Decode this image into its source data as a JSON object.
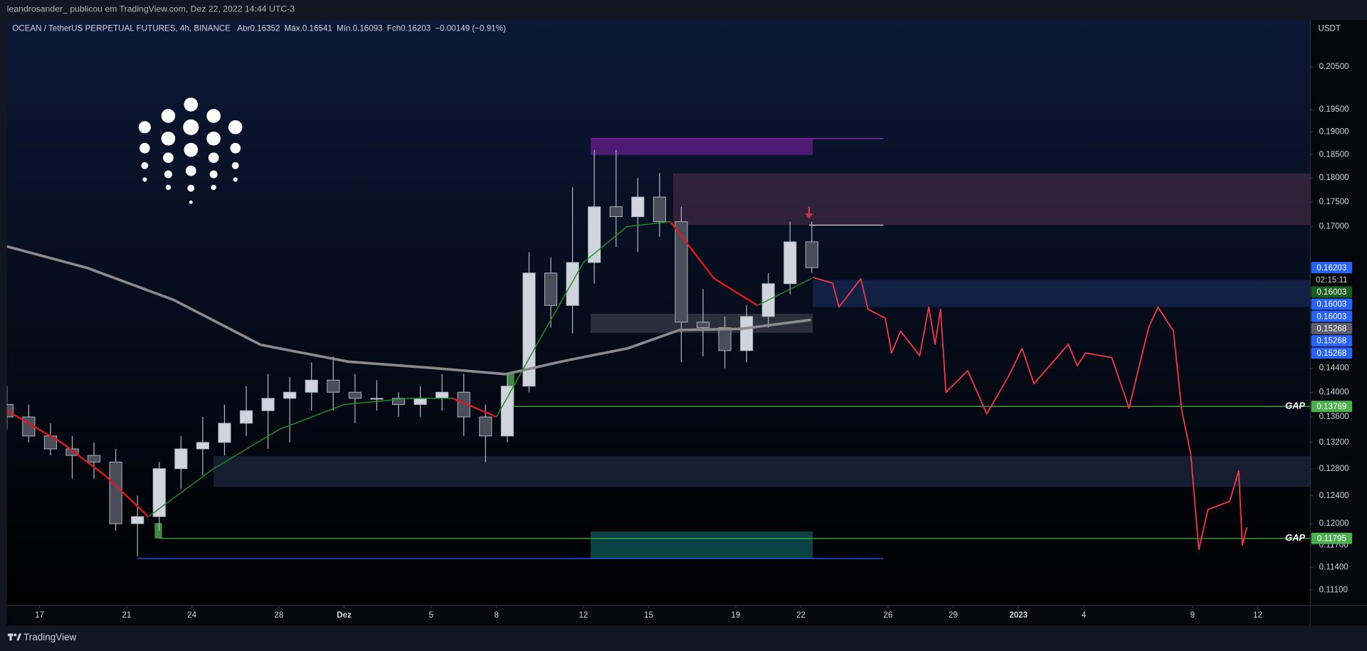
{
  "header": {
    "publisher": "leandrosander_ publicou em TradingView.com, Dez 22, 2022 14:44 UTC-3"
  },
  "footer": {
    "brand": "TradingView"
  },
  "chart_data": {
    "type": "candlestick",
    "title": "OCEAN / TetherUS PERPETUAL FUTURES, 4h, BINANCE",
    "ohlc_legend": [
      {
        "label": "Abr",
        "value": 0.16352
      },
      {
        "label": "Máx.",
        "value": 0.16541
      },
      {
        "label": "Mín.",
        "value": 0.16093
      },
      {
        "label": "Fch",
        "value": 0.16203
      }
    ],
    "change": "−0.00149 (−0.91%)",
    "y_unit": "USDT",
    "log_scale": true,
    "xlim": [
      "2022-11-15T12:00",
      "2023-01-14T10:00"
    ],
    "ylim": [
      0.2166,
      0.109
    ],
    "xticks": [
      {
        "value": "2022-11-17",
        "label": "17"
      },
      {
        "value": "2022-11-21",
        "label": "21"
      },
      {
        "value": "2022-11-24",
        "label": "24"
      },
      {
        "value": "2022-11-28",
        "label": "28"
      },
      {
        "value": "2022-12-01",
        "label": "Dez"
      },
      {
        "value": "2022-12-05",
        "label": "5"
      },
      {
        "value": "2022-12-08",
        "label": "8"
      },
      {
        "value": "2022-12-12",
        "label": "12"
      },
      {
        "value": "2022-12-15",
        "label": "15"
      },
      {
        "value": "2022-12-19",
        "label": "19"
      },
      {
        "value": "2022-12-22",
        "label": "22"
      },
      {
        "value": "2022-12-26",
        "label": "26"
      },
      {
        "value": "2022-12-29",
        "label": "29"
      },
      {
        "value": "2023-01-01",
        "label": "2023"
      },
      {
        "value": "2023-01-04",
        "label": "4"
      },
      {
        "value": "2023-01-09",
        "label": "9"
      },
      {
        "value": "2023-01-12",
        "label": "12"
      }
    ],
    "yticks": [
      {
        "value": 0.205,
        "label": "0.20500"
      },
      {
        "value": 0.195,
        "label": "0.19500"
      },
      {
        "value": 0.19,
        "label": "0.19000"
      },
      {
        "value": 0.185,
        "label": "0.18500"
      },
      {
        "value": 0.18,
        "label": "0.18000"
      },
      {
        "value": 0.175,
        "label": "0.17500"
      },
      {
        "value": 0.17,
        "label": "0.17000"
      },
      {
        "value": 0.144,
        "label": "0.14400"
      },
      {
        "value": 0.14,
        "label": "0.14000"
      },
      {
        "value": 0.136,
        "label": "0.13600"
      },
      {
        "value": 0.132,
        "label": "0.13200"
      },
      {
        "value": 0.128,
        "label": "0.12800"
      },
      {
        "value": 0.124,
        "label": "0.12400"
      },
      {
        "value": 0.12,
        "label": "0.12000"
      },
      {
        "value": 0.117,
        "label": "0.11700"
      },
      {
        "value": 0.114,
        "label": "0.11400"
      },
      {
        "value": 0.111,
        "label": "0.11100"
      }
    ],
    "up_color": "#d1d4dc",
    "down_color": "#4a4e5a",
    "x": [
      "2022-11-15",
      "2022-11-16",
      "2022-11-17",
      "2022-11-18",
      "2022-11-19",
      "2022-11-20",
      "2022-11-21",
      "2022-11-22",
      "2022-11-23",
      "2022-11-24",
      "2022-11-25",
      "2022-11-26",
      "2022-11-27",
      "2022-11-28",
      "2022-11-29",
      "2022-11-30",
      "2022-12-01",
      "2022-12-02",
      "2022-12-03",
      "2022-12-04",
      "2022-12-05",
      "2022-12-06",
      "2022-12-07",
      "2022-12-08",
      "2022-12-09",
      "2022-12-10",
      "2022-12-11",
      "2022-12-12",
      "2022-12-13",
      "2022-12-14",
      "2022-12-15",
      "2022-12-16",
      "2022-12-17",
      "2022-12-18",
      "2022-12-19",
      "2022-12-20",
      "2022-12-21",
      "2022-12-22"
    ],
    "open": [
      0.138,
      0.136,
      0.133,
      0.131,
      0.13,
      0.129,
      0.12,
      0.121,
      0.128,
      0.131,
      0.132,
      0.135,
      0.137,
      0.139,
      0.14,
      0.142,
      0.14,
      0.139,
      0.139,
      0.138,
      0.139,
      0.14,
      0.136,
      0.133,
      0.141,
      0.161,
      0.155,
      0.163,
      0.174,
      0.172,
      0.176,
      0.171,
      0.152,
      0.151,
      0.147,
      0.153,
      0.159,
      0.167
    ],
    "high": [
      0.141,
      0.138,
      0.135,
      0.133,
      0.132,
      0.131,
      0.124,
      0.129,
      0.133,
      0.136,
      0.138,
      0.141,
      0.143,
      0.1425,
      0.145,
      0.146,
      0.143,
      0.142,
      0.14,
      0.141,
      0.143,
      0.143,
      0.138,
      0.143,
      0.165,
      0.164,
      0.178,
      0.186,
      0.186,
      0.18,
      0.181,
      0.174,
      0.158,
      0.153,
      0.155,
      0.161,
      0.171,
      0.171
    ],
    "low": [
      0.134,
      0.132,
      0.13,
      0.1265,
      0.1265,
      0.119,
      0.1155,
      0.119,
      0.125,
      0.127,
      0.13,
      0.133,
      0.131,
      0.132,
      0.137,
      0.137,
      0.135,
      0.137,
      0.136,
      0.136,
      0.137,
      0.133,
      0.129,
      0.132,
      0.14,
      0.151,
      0.15,
      0.159,
      0.166,
      0.165,
      0.168,
      0.145,
      0.146,
      0.144,
      0.145,
      0.151,
      0.157,
      0.161
    ],
    "close": [
      0.136,
      0.133,
      0.131,
      0.13,
      0.129,
      0.12,
      0.121,
      0.128,
      0.131,
      0.132,
      0.135,
      0.137,
      0.139,
      0.14,
      0.142,
      0.14,
      0.139,
      0.139,
      0.138,
      0.139,
      0.14,
      0.136,
      0.133,
      0.141,
      0.161,
      0.155,
      0.163,
      0.174,
      0.172,
      0.176,
      0.171,
      0.152,
      0.151,
      0.147,
      0.153,
      0.159,
      0.167,
      0.16203
    ],
    "series": [
      {
        "color": "#8a8a8f",
        "width": 3,
        "x": [
          "2022-11-15T12:00",
          "2022-11-19T04:00",
          "2022-11-23T04:00",
          "2022-11-27T04:00",
          "2022-12-01T05:00",
          "2022-12-05T05:00",
          "2022-12-08T10:00",
          "2022-12-11T05:00",
          "2022-12-14T01:00",
          "2022-12-16T10:00",
          "2022-12-19T06:00",
          "2022-12-22T11:00"
        ],
        "values": [
          0.1661,
          0.162,
          0.156,
          0.148,
          0.1451,
          0.144,
          0.143,
          0.1453,
          0.1474,
          0.1506,
          0.1508,
          0.1524
        ]
      },
      {
        "color": "#1e8c2a",
        "width": 1.2,
        "x": [
          "2022-11-15T12:00",
          "2022-11-18",
          "2022-11-20",
          "2022-11-22",
          "2022-11-25",
          "2022-11-28",
          "2022-12-01",
          "2022-12-04",
          "2022-12-06",
          "2022-12-08",
          "2022-12-10",
          "2022-12-12",
          "2022-12-14",
          "2022-12-16",
          "2022-12-18",
          "2022-12-20",
          "2022-12-22T12:00"
        ],
        "values": [
          null,
          null,
          null,
          0.121,
          0.128,
          0.134,
          0.138,
          0.139,
          0.139,
          0.136,
          0.149,
          0.163,
          0.17,
          0.171,
          null,
          0.155,
          0.16
        ]
      },
      {
        "color": "#e0161d",
        "width": 2,
        "x": [
          "2022-11-15T12:00",
          "2022-11-18",
          "2022-11-20",
          "2022-11-22",
          "2022-11-25",
          "2022-11-28",
          "2022-12-01",
          "2022-12-04",
          "2022-12-06",
          "2022-12-08",
          "2022-12-10",
          "2022-12-12",
          "2022-12-14",
          "2022-12-16",
          "2022-12-18",
          "2022-12-20",
          "2022-12-22T12:00"
        ],
        "values": [
          0.137,
          0.132,
          0.127,
          0.121,
          null,
          null,
          null,
          null,
          0.139,
          0.136,
          null,
          null,
          null,
          0.171,
          0.16,
          0.155,
          null
        ]
      },
      {
        "color": "#f23645",
        "width": 1.5,
        "x": [
          "2022-12-22T13:00",
          "2022-12-23T11:00",
          "2022-12-23T18:00",
          "2022-12-24T18:00",
          "2022-12-25T02:00",
          "2022-12-25T21:00",
          "2022-12-26T04:00",
          "2022-12-26T14:00",
          "2022-12-27T11:00",
          "2022-12-27T21:00",
          "2022-12-28T04:00",
          "2022-12-28T10:00",
          "2022-12-28T16:00",
          "2022-12-29T16:00",
          "2022-12-30T13:00",
          "2022-12-31T14:00",
          "2023-01-01T04:00",
          "2023-01-01T17:00",
          "2023-01-03T07:00",
          "2023-01-03T17:00",
          "2023-01-04T02:00",
          "2023-01-05T07:00",
          "2023-01-06T02:00",
          "2023-01-06T12:00",
          "2023-01-07T00:00",
          "2023-01-07T10:00",
          "2023-01-08T03:00",
          "2023-01-08T12:00",
          "2023-01-08T22:00",
          "2023-01-09T07:00",
          "2023-01-09T17:00",
          "2023-01-10T17:00",
          "2023-01-11T03:00",
          "2023-01-11T07:00",
          "2023-01-11T12:00"
        ],
        "values": [
          0.1602,
          0.1591,
          0.1547,
          0.1599,
          0.1543,
          0.1527,
          0.1466,
          0.1504,
          0.1461,
          0.1547,
          0.1481,
          0.1543,
          0.14,
          0.1436,
          0.1365,
          0.1429,
          0.1474,
          0.1414,
          0.1481,
          0.1444,
          0.1466,
          0.1458,
          0.1374,
          0.1436,
          0.1512,
          0.1547,
          0.1504,
          0.1372,
          0.1303,
          0.1164,
          0.122,
          0.1232,
          0.1277,
          0.117,
          0.1195
        ]
      }
    ],
    "zones": [
      {
        "x": [
          "2022-12-12T08:00",
          "2022-12-22T13:00"
        ],
        "y": [
          0.1885,
          0.1849
        ],
        "color": "rgba(100,30,140,0.75)"
      },
      {
        "x": [
          "2022-12-16T03:00",
          "2023-01-14T10:00"
        ],
        "y": [
          0.181,
          0.1703
        ],
        "color": "rgba(110,60,90,0.4)"
      },
      {
        "x": [
          "2022-12-22T13:00",
          "2023-01-14T10:00"
        ],
        "y": [
          0.1597,
          0.1547
        ],
        "color": "rgba(40,70,140,0.35)"
      },
      {
        "x": [
          "2022-12-12T08:00",
          "2022-12-22T13:00"
        ],
        "y": [
          0.1535,
          0.1501
        ],
        "color": "rgba(130,130,140,0.3)"
      },
      {
        "x": [
          "2022-11-25T00:00",
          "2023-01-14T10:00"
        ],
        "y": [
          0.1299,
          0.1253
        ],
        "color": "rgba(60,80,120,0.35)"
      },
      {
        "x": [
          "2022-12-12T08:00",
          "2022-12-22T13:00"
        ],
        "y": [
          0.1189,
          0.1152
        ],
        "color": "rgba(20,120,120,0.55)"
      },
      {
        "x": [
          "2022-12-08T12:00",
          "2022-12-08T19:40"
        ],
        "y": [
          0.1433,
          0.13769
        ],
        "color": "rgba(76,175,80,0.8)"
      },
      {
        "x": [
          "2022-11-22T07:00",
          "2022-11-22T15:00"
        ],
        "y": [
          0.1201,
          0.11795
        ],
        "color": "rgba(76,175,80,0.8)"
      }
    ],
    "levels": [
      {
        "value": 0.1885,
        "x": [
          "2022-12-12T08:00",
          "2022-12-25T19:00"
        ],
        "color": "#9c27b0"
      },
      {
        "value": 0.1703,
        "x": [
          "2022-12-22T09:00",
          "2022-12-25T19:00"
        ],
        "color": "#e0e0e0"
      },
      {
        "value": 0.1152,
        "x": [
          "2022-11-21T12:00",
          "2022-12-25T19:00"
        ],
        "color": "#2962ff"
      },
      {
        "value": 0.13769,
        "x": [
          "2022-12-08T14:00",
          "2023-01-14T10:00"
        ],
        "color": "#4caf50",
        "label": "GAP"
      },
      {
        "value": 0.11795,
        "x": [
          "2022-11-22T12:00",
          "2023-01-14T10:00"
        ],
        "color": "#4caf50",
        "label": "GAP"
      }
    ],
    "countdown": "02:15:11",
    "badges": [
      {
        "value": 0.16203,
        "color": "#2962ff"
      },
      {
        "value": 0.16003,
        "color": "#1b5e20"
      },
      {
        "value": 0.16003,
        "color": "#2962ff"
      },
      {
        "value": 0.16003,
        "color": "#2962ff"
      },
      {
        "value": 0.15268,
        "color": "#5d606b"
      },
      {
        "value": 0.15268,
        "color": "#2962ff"
      },
      {
        "value": 0.15268,
        "color": "#2962ff"
      },
      {
        "value": 0.13769,
        "color": "#4caf50"
      },
      {
        "value": 0.11795,
        "color": "#4caf50"
      }
    ]
  }
}
